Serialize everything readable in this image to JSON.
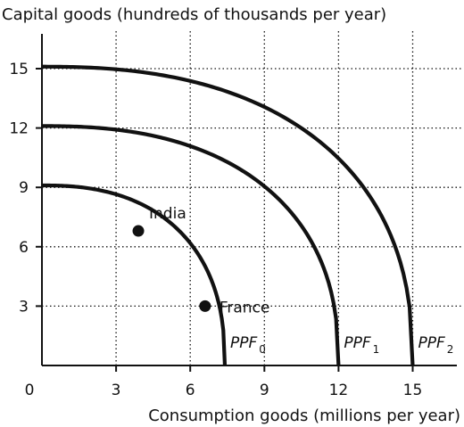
{
  "chart_data": {
    "type": "line",
    "title": "",
    "ylabel": "Capital goods (hundreds of thousands per year)",
    "xlabel": "Consumption goods (millions per year)",
    "xlim": [
      0,
      17
    ],
    "ylim": [
      0,
      17
    ],
    "origin_label": "0",
    "x_ticks": [
      3,
      6,
      9,
      12,
      15
    ],
    "y_ticks": [
      3,
      6,
      9,
      12,
      15
    ],
    "grid": "dotted",
    "series": [
      {
        "name": "PPF0",
        "label_main": "PPF",
        "label_sub": "0",
        "x_intercept": 7.4,
        "y_intercept": 9.1
      },
      {
        "name": "PPF1",
        "label_main": "PPF",
        "label_sub": "1",
        "x_intercept": 12.0,
        "y_intercept": 12.1
      },
      {
        "name": "PPF2",
        "label_main": "PPF",
        "label_sub": "2",
        "x_intercept": 15.0,
        "y_intercept": 15.1
      }
    ],
    "points": [
      {
        "label": "India",
        "x": 3.9,
        "y": 6.8
      },
      {
        "label": "France",
        "x": 6.6,
        "y": 3.0
      }
    ]
  }
}
